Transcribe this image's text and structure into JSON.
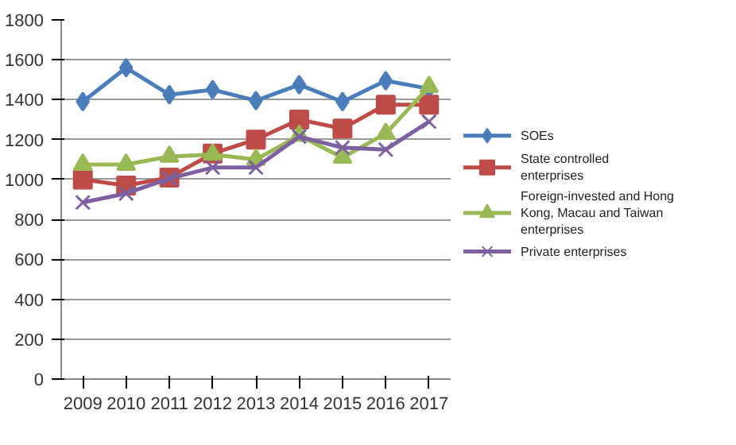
{
  "chart_data": {
    "type": "line",
    "categories": [
      "2009",
      "2010",
      "2011",
      "2012",
      "2013",
      "2014",
      "2015",
      "2016",
      "2017"
    ],
    "series": [
      {
        "name": "SOEs",
        "color": "#4a7ebb",
        "marker": "diamond",
        "values": [
          1390,
          1560,
          1425,
          1450,
          1395,
          1475,
          1390,
          1495,
          1455
        ]
      },
      {
        "name": "State controlled enterprises",
        "color": "#be4b48",
        "marker": "square",
        "values": [
          1000,
          970,
          1010,
          1130,
          1200,
          1300,
          1255,
          1375,
          1375
        ]
      },
      {
        "name": "Foreign-invested and Hong Kong, Macau and Taiwan enterprises",
        "color": "#98b954",
        "marker": "triangle",
        "values": [
          1075,
          1075,
          1115,
          1125,
          1100,
          1220,
          1110,
          1230,
          1465
        ]
      },
      {
        "name": "Private enterprises",
        "color": "#7d60a0",
        "marker": "x",
        "values": [
          885,
          930,
          1005,
          1060,
          1060,
          1215,
          1160,
          1150,
          1290
        ]
      }
    ],
    "ylim": [
      0,
      1800
    ],
    "yticks": [
      0,
      200,
      400,
      600,
      800,
      1000,
      1200,
      1400,
      1600,
      1800
    ],
    "grid": "y",
    "legend": "right"
  }
}
